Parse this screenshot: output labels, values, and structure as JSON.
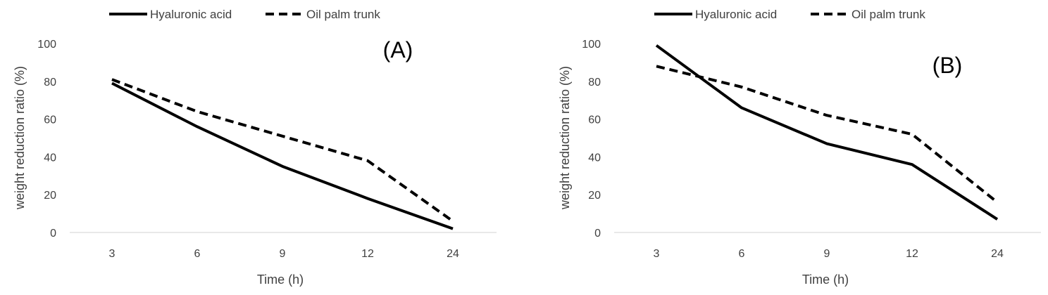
{
  "chart_data": [
    {
      "type": "line",
      "panel_label": "(A)",
      "categories": [
        "3",
        "6",
        "9",
        "12",
        "24"
      ],
      "xlabel": "Time (h)",
      "ylabel": "weight reduction ratio (%)",
      "ylim": [
        0,
        100
      ],
      "yticks": [
        "0",
        "20",
        "40",
        "60",
        "80",
        "100"
      ],
      "grid": false,
      "legend_position": "top",
      "series": [
        {
          "name": "Hyaluronic acid",
          "style": "solid",
          "color": "#000000",
          "values": [
            79,
            56,
            35,
            18,
            2
          ]
        },
        {
          "name": "Oil palm trunk",
          "style": "dashed",
          "color": "#000000",
          "values": [
            81,
            64,
            51,
            38,
            6
          ]
        }
      ]
    },
    {
      "type": "line",
      "panel_label": "(B)",
      "categories": [
        "3",
        "6",
        "9",
        "12",
        "24"
      ],
      "xlabel": "Time (h)",
      "ylabel": "weight reduction ratio (%)",
      "ylim": [
        0,
        100
      ],
      "yticks": [
        "0",
        "20",
        "40",
        "60",
        "80",
        "100"
      ],
      "grid": false,
      "legend_position": "top",
      "series": [
        {
          "name": "Hyaluronic acid",
          "style": "solid",
          "color": "#000000",
          "values": [
            99,
            66,
            47,
            36,
            7
          ]
        },
        {
          "name": "Oil palm trunk",
          "style": "dashed",
          "color": "#000000",
          "values": [
            88,
            77,
            62,
            52,
            16
          ]
        }
      ]
    }
  ]
}
